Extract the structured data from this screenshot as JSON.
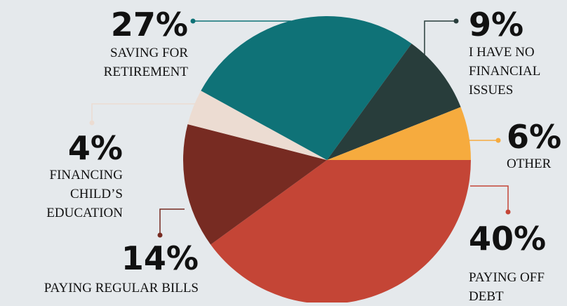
{
  "chart_data": {
    "type": "pie",
    "categories": [
      "PAYING OFF DEBT",
      "PAYING REGULAR BILLS",
      "FINANCING CHILD’S EDUCATION",
      "SAVING FOR RETIREMENT",
      "I HAVE NO FINANCIAL ISSUES",
      "OTHER"
    ],
    "values": [
      40,
      14,
      4,
      27,
      9,
      6
    ],
    "value_labels": [
      "40%",
      "14%",
      "4%",
      "27%",
      "9%",
      "6%"
    ],
    "colors": [
      "#c44536",
      "#772b22",
      "#ecdcd2",
      "#0f7277",
      "#283d3b",
      "#f6ab3e"
    ]
  }
}
